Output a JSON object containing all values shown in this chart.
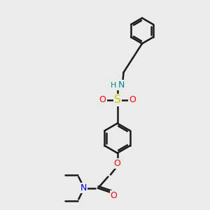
{
  "background_color": "#ebebeb",
  "bond_color": "#1a1a1a",
  "bond_width": 1.8,
  "fig_size": [
    3.0,
    3.0
  ],
  "dpi": 100,
  "colors": {
    "S": "#cccc00",
    "O": "#ff0000",
    "N_sulfonamide": "#008b8b",
    "H": "#008b8b",
    "N_amide": "#0000ee",
    "C": "#1a1a1a"
  }
}
